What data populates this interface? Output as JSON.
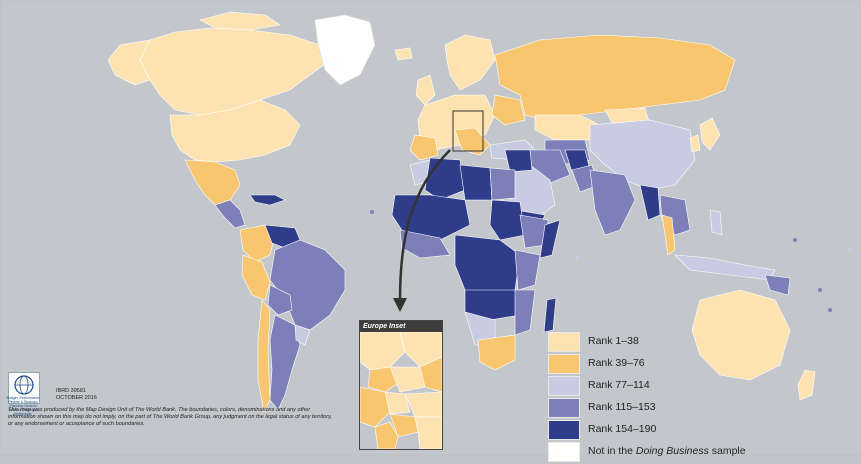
{
  "legend": {
    "items": [
      {
        "label": "Rank 1–38",
        "color": "#fde3b2"
      },
      {
        "label": "Rank 39–76",
        "color": "#f9c670"
      },
      {
        "label": "Rank 77–114",
        "color": "#c8cbe2"
      },
      {
        "label": "Rank 115–153",
        "color": "#7d80b8"
      },
      {
        "label": "Rank 154–190",
        "color": "#2e3c8a"
      },
      {
        "label_pre": "Not in the ",
        "label_em": "Doing Business",
        "label_post": " sample",
        "color": "#ffffff"
      }
    ]
  },
  "inset": {
    "title": "Europe Inset"
  },
  "credit": {
    "logo_text": "Budget, Performance Review & Strategic Planning General Services Printing & Multimedia",
    "id_line": "IBRD 39581",
    "date_line": "OCTOBER 2016",
    "disclaimer": "This map was produced by the Map Design Unit of The World Bank. The boundaries, colors, denominations and any other information shown on this map do not imply, on the part of The World Bank Group, any judgment on the legal status of any territory, or any endorsement or acceptance of such boundaries."
  },
  "colors": {
    "ocean": "#c3c7cb",
    "rank1": "#fde3b2",
    "rank2": "#f9c670",
    "rank3": "#c8cbe2",
    "rank4": "#7d80b8",
    "rank5": "#2e3c8a",
    "not_sampled": "#ffffff"
  }
}
